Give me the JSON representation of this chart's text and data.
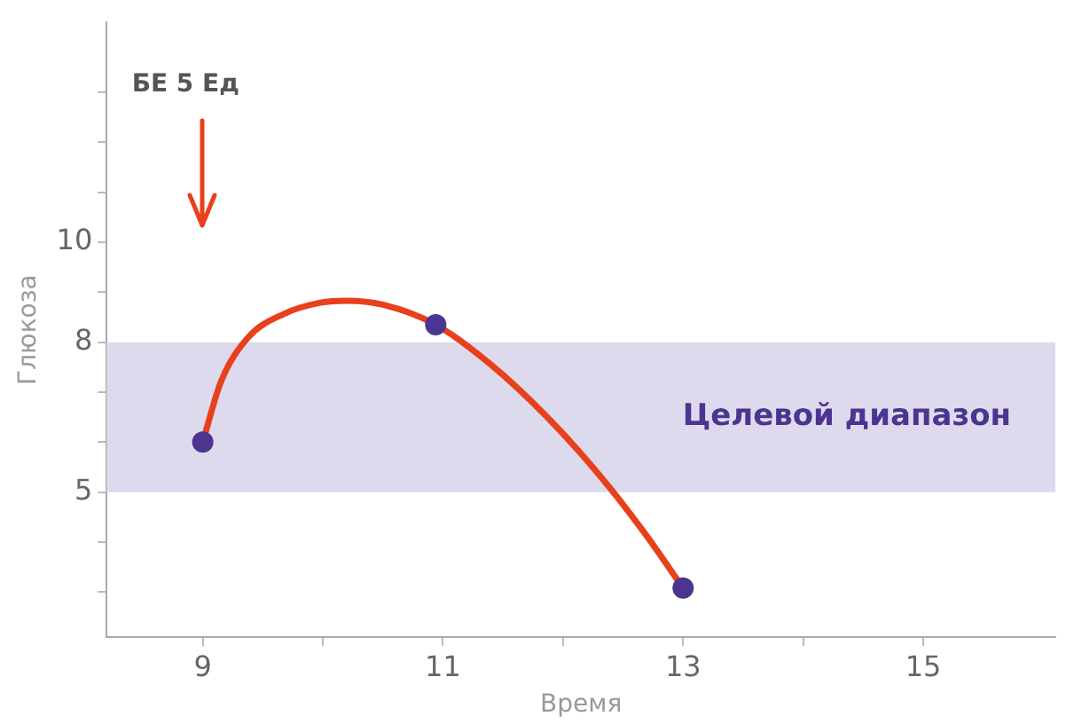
{
  "chart_data": {
    "type": "line",
    "xlabel": "Время",
    "ylabel": "Глюкоза",
    "xlim": [
      8.2,
      16.1
    ],
    "ylim": [
      2.1,
      14.4
    ],
    "xticks": [
      9,
      {
        "value": 10,
        "label": null
      },
      11,
      {
        "value": 12,
        "label": null
      },
      13,
      {
        "value": 14,
        "label": null
      },
      15
    ],
    "yticks": [
      {
        "value": 3,
        "label": null
      },
      {
        "value": 4,
        "label": null
      },
      5,
      {
        "value": 6,
        "label": null
      },
      {
        "value": 7,
        "label": null
      },
      8,
      {
        "value": 9,
        "label": null
      },
      10,
      {
        "value": 11,
        "label": null
      },
      {
        "value": 12,
        "label": null
      },
      {
        "value": 13,
        "label": null
      }
    ],
    "grid": false,
    "legend": false,
    "line_style": "solid",
    "series": [
      {
        "color": "#e8401c",
        "marker": "none",
        "x": [
          9,
          9.15,
          9.38,
          9.68,
          9.98,
          10.2,
          10.5,
          10.94,
          11.4,
          11.86,
          12.3,
          12.68,
          13
        ],
        "values": [
          6.0,
          7.2,
          8.1,
          8.57,
          8.79,
          8.83,
          8.75,
          8.35,
          7.55,
          6.52,
          5.35,
          4.18,
          3.08
        ]
      },
      {
        "type": "scatter",
        "color": "#4b3590",
        "marker": "circle",
        "x": [
          9,
          10.94,
          13
        ],
        "values": [
          6.0,
          8.35,
          3.08
        ]
      }
    ],
    "bands": [
      {
        "axis": "y",
        "from": 5,
        "to": 8,
        "label": "Целевой диапазон",
        "color": "#dedaee"
      }
    ],
    "annotations": [
      "БЕ 5 Ед"
    ]
  }
}
